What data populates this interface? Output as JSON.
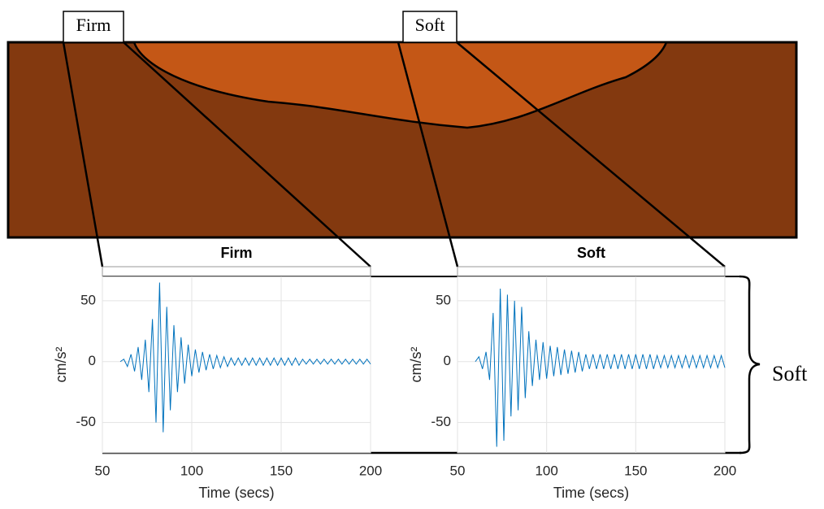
{
  "diagram": {
    "labels": [
      "Firm",
      "Soft"
    ],
    "bracket_label": "Soft"
  },
  "chart_data": [
    {
      "type": "line",
      "title": "Firm",
      "xlabel": "Time (secs)",
      "ylabel": "cm/s²",
      "x": [
        60,
        62,
        64,
        66,
        68,
        70,
        72,
        74,
        76,
        78,
        80,
        82,
        84,
        86,
        88,
        90,
        92,
        94,
        96,
        98,
        100,
        102,
        104,
        106,
        108,
        110,
        112,
        114,
        116,
        118,
        120,
        122,
        124,
        126,
        128,
        130,
        132,
        134,
        136,
        138,
        140,
        142,
        144,
        146,
        148,
        150,
        152,
        154,
        156,
        158,
        160,
        162,
        164,
        166,
        168,
        170,
        172,
        174,
        176,
        178,
        180,
        182,
        184,
        186,
        188,
        190,
        192,
        194,
        196,
        198,
        200
      ],
      "series": [
        {
          "color": "#0072bd",
          "values": [
            0,
            2,
            -4,
            6,
            -8,
            12,
            -15,
            18,
            -25,
            35,
            -50,
            65,
            -58,
            45,
            -40,
            30,
            -25,
            20,
            -18,
            14,
            -12,
            10,
            -9,
            8,
            -7,
            6,
            -6,
            5,
            -5,
            4,
            -4,
            3,
            -3,
            3,
            -3,
            3,
            -3,
            3,
            -3,
            3,
            -3,
            3,
            -3,
            3,
            -3,
            3,
            -3,
            3,
            -3,
            3,
            -3,
            2,
            -2,
            2,
            -2,
            2,
            -2,
            2,
            -2,
            2,
            -2,
            2,
            -2,
            2,
            -2,
            2,
            -2,
            2,
            -2,
            2,
            -2
          ]
        }
      ],
      "xlim": [
        50,
        200
      ],
      "xticks": [
        50,
        100,
        150,
        200
      ],
      "ylim": [
        -75,
        70
      ],
      "yticks": [
        -50,
        0,
        50
      ],
      "grid": true
    },
    {
      "type": "line",
      "title": "Soft",
      "xlabel": "Time (secs)",
      "ylabel": "cm/s²",
      "x": [
        60,
        62,
        64,
        66,
        68,
        70,
        72,
        74,
        76,
        78,
        80,
        82,
        84,
        86,
        88,
        90,
        92,
        94,
        96,
        98,
        100,
        102,
        104,
        106,
        108,
        110,
        112,
        114,
        116,
        118,
        120,
        122,
        124,
        126,
        128,
        130,
        132,
        134,
        136,
        138,
        140,
        142,
        144,
        146,
        148,
        150,
        152,
        154,
        156,
        158,
        160,
        162,
        164,
        166,
        168,
        170,
        172,
        174,
        176,
        178,
        180,
        182,
        184,
        186,
        188,
        190,
        192,
        194,
        196,
        198,
        200
      ],
      "series": [
        {
          "color": "#0072bd",
          "values": [
            0,
            4,
            -6,
            8,
            -15,
            40,
            -70,
            60,
            -65,
            55,
            -45,
            50,
            -40,
            45,
            -30,
            25,
            -20,
            18,
            -15,
            16,
            -14,
            13,
            -12,
            12,
            -11,
            10,
            -10,
            9,
            -9,
            8,
            -8,
            6,
            -6,
            6,
            -6,
            6,
            -6,
            6,
            -6,
            6,
            -6,
            6,
            -6,
            6,
            -6,
            6,
            -6,
            6,
            -6,
            6,
            -6,
            5,
            -5,
            5,
            -5,
            5,
            -5,
            5,
            -5,
            5,
            -5,
            5,
            -5,
            5,
            -5,
            5,
            -5,
            5,
            -5,
            5,
            -5
          ]
        }
      ],
      "xlim": [
        50,
        200
      ],
      "xticks": [
        50,
        100,
        150,
        200
      ],
      "ylim": [
        -75,
        70
      ],
      "yticks": [
        -50,
        0,
        50
      ],
      "grid": true
    }
  ]
}
